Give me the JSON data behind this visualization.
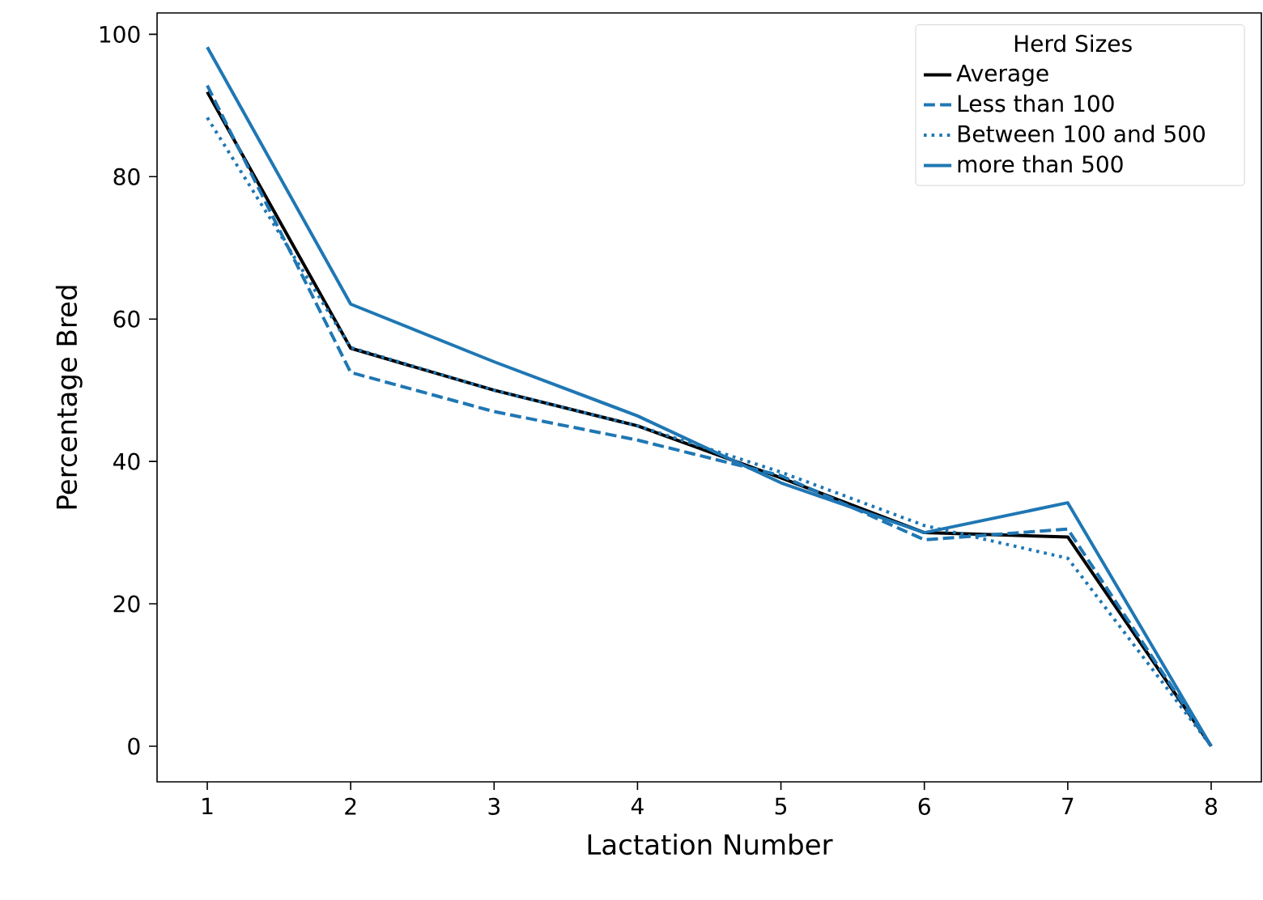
{
  "chart_data": {
    "type": "line",
    "xlabel": "Lactation Number",
    "ylabel": "Percentage Bred",
    "legend_title": "Herd Sizes",
    "legend": "top right",
    "grid": false,
    "x": [
      1,
      2,
      3,
      4,
      5,
      6,
      7,
      8
    ],
    "xlim": [
      0.65,
      8.35
    ],
    "xticks": [
      1,
      2,
      3,
      4,
      5,
      6,
      7,
      8
    ],
    "ylim": [
      -5,
      103
    ],
    "yticks": [
      0,
      20,
      40,
      60,
      80,
      100
    ],
    "series": [
      {
        "name": "Average",
        "color": "#000000",
        "line_style": "solid",
        "values": [
          91.9,
          55.9,
          50,
          45,
          37.7,
          30,
          29.4,
          0
        ]
      },
      {
        "name": "Less than 100",
        "color": "#1f77b4",
        "line_style": "dashed",
        "values": [
          92.8,
          52.5,
          47,
          43,
          38,
          29,
          30.5,
          0
        ]
      },
      {
        "name": "Between 100 and 500",
        "color": "#1f77b4",
        "line_style": "dotted",
        "values": [
          88.3,
          56,
          50,
          45,
          38.5,
          31,
          26.4,
          0
        ]
      },
      {
        "name": "more than 500",
        "color": "#1f77b4",
        "line_style": "solid",
        "values": [
          98.2,
          62.1,
          54,
          46.4,
          37,
          30,
          34.2,
          0
        ]
      }
    ]
  }
}
